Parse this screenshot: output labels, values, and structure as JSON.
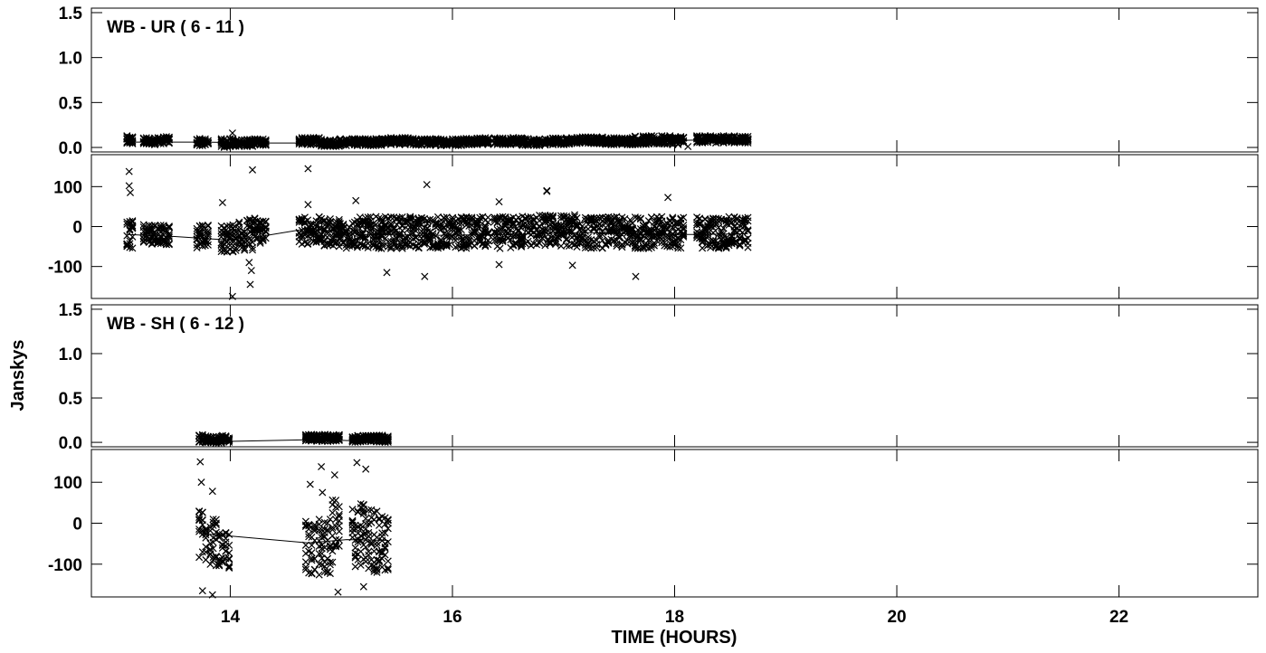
{
  "chart_data": {
    "type": "scatter",
    "xlabel": "TIME (HOURS)",
    "ylabel": "Janskys",
    "xlim": [
      12.75,
      23.25
    ],
    "x_ticks": [
      14,
      16,
      18,
      20,
      22
    ],
    "x_tick_labels": [
      "14",
      "16",
      "18",
      "20",
      "22"
    ],
    "marker": "x",
    "grid": false,
    "panels": [
      {
        "label": "WB - UR ( 6 - 11 )",
        "amplitude": {
          "ylim": [
            -0.05,
            1.55
          ],
          "y_ticks": [
            0.0,
            0.5,
            1.0,
            1.5
          ],
          "y_tick_labels": [
            "0.0",
            "0.5",
            "1.0",
            "1.5"
          ],
          "groups": [
            {
              "start": 13.07,
              "end": 13.12,
              "center": 0.08,
              "spread": 0.05
            },
            {
              "start": 13.22,
              "end": 13.32,
              "center": 0.07,
              "spread": 0.04
            },
            {
              "start": 13.35,
              "end": 13.45,
              "center": 0.08,
              "spread": 0.04
            },
            {
              "start": 13.7,
              "end": 13.8,
              "center": 0.06,
              "spread": 0.04
            },
            {
              "start": 13.92,
              "end": 14.05,
              "center": 0.05,
              "spread": 0.05
            },
            {
              "start": 14.08,
              "end": 14.2,
              "center": 0.05,
              "spread": 0.04
            },
            {
              "start": 14.22,
              "end": 14.32,
              "center": 0.06,
              "spread": 0.04
            },
            {
              "start": 14.62,
              "end": 14.8,
              "center": 0.07,
              "spread": 0.04
            },
            {
              "start": 14.82,
              "end": 14.98,
              "center": 0.05,
              "spread": 0.04
            },
            {
              "start": 14.99,
              "end": 15.1,
              "center": 0.06,
              "spread": 0.04
            },
            {
              "start": 15.12,
              "end": 15.36,
              "center": 0.06,
              "spread": 0.04
            },
            {
              "start": 15.37,
              "end": 15.6,
              "center": 0.07,
              "spread": 0.04
            },
            {
              "start": 15.62,
              "end": 15.85,
              "center": 0.06,
              "spread": 0.04
            },
            {
              "start": 15.87,
              "end": 16.08,
              "center": 0.06,
              "spread": 0.04
            },
            {
              "start": 16.1,
              "end": 16.32,
              "center": 0.07,
              "spread": 0.04
            },
            {
              "start": 16.38,
              "end": 16.62,
              "center": 0.07,
              "spread": 0.04
            },
            {
              "start": 16.63,
              "end": 16.86,
              "center": 0.06,
              "spread": 0.04
            },
            {
              "start": 16.88,
              "end": 17.1,
              "center": 0.07,
              "spread": 0.04
            },
            {
              "start": 17.12,
              "end": 17.35,
              "center": 0.08,
              "spread": 0.04
            },
            {
              "start": 17.38,
              "end": 17.6,
              "center": 0.07,
              "spread": 0.04
            },
            {
              "start": 17.62,
              "end": 17.84,
              "center": 0.08,
              "spread": 0.05
            },
            {
              "start": 17.86,
              "end": 18.08,
              "center": 0.08,
              "spread": 0.05
            },
            {
              "start": 18.2,
              "end": 18.42,
              "center": 0.09,
              "spread": 0.04
            },
            {
              "start": 18.44,
              "end": 18.66,
              "center": 0.09,
              "spread": 0.04
            }
          ],
          "outliers": [
            [
              14.02,
              0.16
            ],
            [
              14.18,
              0.02
            ],
            [
              18.12,
              0.01
            ]
          ],
          "line": [
            [
              13.07,
              0.06
            ],
            [
              13.75,
              0.06
            ],
            [
              14.3,
              0.05
            ],
            [
              14.9,
              0.05
            ],
            [
              15.6,
              0.06
            ],
            [
              16.5,
              0.07
            ],
            [
              17.3,
              0.07
            ],
            [
              18.1,
              0.08
            ],
            [
              18.66,
              0.09
            ]
          ]
        },
        "phase": {
          "ylim": [
            -180,
            180
          ],
          "y_ticks": [
            -100,
            0,
            100
          ],
          "y_tick_labels": [
            "-100",
            "0",
            "100"
          ],
          "groups": [
            {
              "start": 13.07,
              "end": 13.12,
              "center": -20,
              "spread": 35
            },
            {
              "start": 13.22,
              "end": 13.32,
              "center": -20,
              "spread": 25
            },
            {
              "start": 13.35,
              "end": 13.45,
              "center": -20,
              "spread": 25
            },
            {
              "start": 13.7,
              "end": 13.8,
              "center": -25,
              "spread": 30
            },
            {
              "start": 13.92,
              "end": 14.05,
              "center": -30,
              "spread": 35
            },
            {
              "start": 14.08,
              "end": 14.2,
              "center": -20,
              "spread": 40
            },
            {
              "start": 14.22,
              "end": 14.32,
              "center": -10,
              "spread": 35
            },
            {
              "start": 14.62,
              "end": 14.8,
              "center": -10,
              "spread": 35
            },
            {
              "start": 14.82,
              "end": 14.98,
              "center": -15,
              "spread": 35
            },
            {
              "start": 14.99,
              "end": 15.1,
              "center": -20,
              "spread": 35
            },
            {
              "start": 15.12,
              "end": 15.36,
              "center": -15,
              "spread": 40
            },
            {
              "start": 15.37,
              "end": 15.6,
              "center": -15,
              "spread": 40
            },
            {
              "start": 15.62,
              "end": 15.85,
              "center": -15,
              "spread": 40
            },
            {
              "start": 15.87,
              "end": 16.08,
              "center": -15,
              "spread": 40
            },
            {
              "start": 16.1,
              "end": 16.32,
              "center": -15,
              "spread": 40
            },
            {
              "start": 16.38,
              "end": 16.62,
              "center": -15,
              "spread": 40
            },
            {
              "start": 16.63,
              "end": 16.86,
              "center": -10,
              "spread": 40
            },
            {
              "start": 16.88,
              "end": 17.1,
              "center": -10,
              "spread": 40
            },
            {
              "start": 17.12,
              "end": 17.35,
              "center": -15,
              "spread": 40
            },
            {
              "start": 17.38,
              "end": 17.6,
              "center": -15,
              "spread": 40
            },
            {
              "start": 17.62,
              "end": 17.84,
              "center": -15,
              "spread": 40
            },
            {
              "start": 17.86,
              "end": 18.08,
              "center": -15,
              "spread": 40
            },
            {
              "start": 18.2,
              "end": 18.42,
              "center": -15,
              "spread": 40
            },
            {
              "start": 18.44,
              "end": 18.66,
              "center": -15,
              "spread": 40
            }
          ],
          "outliers": [
            [
              13.09,
              138
            ],
            [
              13.09,
              102
            ],
            [
              13.1,
              85
            ],
            [
              13.93,
              60
            ],
            [
              14.02,
              -175
            ],
            [
              14.18,
              -145
            ],
            [
              14.2,
              142
            ],
            [
              14.19,
              -110
            ],
            [
              14.17,
              -90
            ],
            [
              14.7,
              145
            ],
            [
              14.7,
              55
            ],
            [
              15.13,
              65
            ],
            [
              15.41,
              -115
            ],
            [
              15.75,
              -125
            ],
            [
              15.77,
              105
            ],
            [
              16.42,
              62
            ],
            [
              16.42,
              -95
            ],
            [
              16.85,
              90
            ],
            [
              16.85,
              88
            ],
            [
              17.08,
              -97
            ],
            [
              17.65,
              -125
            ],
            [
              17.94,
              73
            ]
          ],
          "line": [
            [
              13.07,
              -20
            ],
            [
              13.5,
              -25
            ],
            [
              13.95,
              -33
            ],
            [
              14.2,
              -28
            ],
            [
              14.7,
              -5
            ],
            [
              15.2,
              -20
            ],
            [
              15.8,
              -22
            ],
            [
              16.5,
              -20
            ],
            [
              17.2,
              -15
            ],
            [
              17.8,
              -20
            ],
            [
              18.2,
              -20
            ],
            [
              18.66,
              -18
            ]
          ]
        }
      },
      {
        "label": "WB - SH ( 6 - 12 )",
        "amplitude": {
          "ylim": [
            -0.05,
            1.55
          ],
          "y_ticks": [
            0.0,
            0.5,
            1.0,
            1.5
          ],
          "y_tick_labels": [
            "0.0",
            "0.5",
            "1.0",
            "1.5"
          ],
          "groups": [
            {
              "start": 13.72,
              "end": 13.78,
              "center": 0.04,
              "spread": 0.05
            },
            {
              "start": 13.8,
              "end": 13.92,
              "center": 0.03,
              "spread": 0.04
            },
            {
              "start": 13.93,
              "end": 13.99,
              "center": 0.04,
              "spread": 0.04
            },
            {
              "start": 14.68,
              "end": 14.78,
              "center": 0.05,
              "spread": 0.04
            },
            {
              "start": 14.8,
              "end": 14.98,
              "center": 0.05,
              "spread": 0.04
            },
            {
              "start": 15.1,
              "end": 15.22,
              "center": 0.04,
              "spread": 0.04
            },
            {
              "start": 15.24,
              "end": 15.42,
              "center": 0.04,
              "spread": 0.04
            }
          ],
          "outliers": [],
          "line": [
            [
              13.72,
              0.0
            ],
            [
              13.95,
              0.01
            ],
            [
              14.75,
              0.03
            ],
            [
              15.05,
              0.02
            ],
            [
              15.42,
              0.04
            ]
          ]
        },
        "phase": {
          "ylim": [
            -180,
            180
          ],
          "y_ticks": [
            -100,
            0,
            100
          ],
          "y_tick_labels": [
            "-100",
            "0",
            "100"
          ],
          "groups": [
            {
              "start": 13.72,
              "end": 13.78,
              "center": -30,
              "spread": 60
            },
            {
              "start": 13.82,
              "end": 13.9,
              "center": -50,
              "spread": 60
            },
            {
              "start": 13.93,
              "end": 13.99,
              "center": -70,
              "spread": 50
            },
            {
              "start": 14.68,
              "end": 14.76,
              "center": -60,
              "spread": 70
            },
            {
              "start": 14.8,
              "end": 14.9,
              "center": -60,
              "spread": 70
            },
            {
              "start": 14.92,
              "end": 14.98,
              "center": -20,
              "spread": 80
            },
            {
              "start": 15.1,
              "end": 15.2,
              "center": -30,
              "spread": 80
            },
            {
              "start": 15.22,
              "end": 15.32,
              "center": -40,
              "spread": 80
            },
            {
              "start": 15.34,
              "end": 15.42,
              "center": -50,
              "spread": 70
            }
          ],
          "outliers": [
            [
              13.73,
              150
            ],
            [
              13.74,
              100
            ],
            [
              13.75,
              -165
            ],
            [
              13.84,
              78
            ],
            [
              13.84,
              -175
            ],
            [
              14.72,
              95
            ],
            [
              14.82,
              138
            ],
            [
              14.83,
              75
            ],
            [
              14.94,
              118
            ],
            [
              14.97,
              -168
            ],
            [
              15.14,
              148
            ],
            [
              15.2,
              -155
            ],
            [
              15.22,
              132
            ],
            [
              15.32,
              -120
            ]
          ],
          "line": [
            [
              13.72,
              -25
            ],
            [
              13.95,
              -30
            ],
            [
              14.7,
              -48
            ],
            [
              15.05,
              -40
            ],
            [
              15.42,
              -42
            ]
          ]
        }
      }
    ]
  }
}
